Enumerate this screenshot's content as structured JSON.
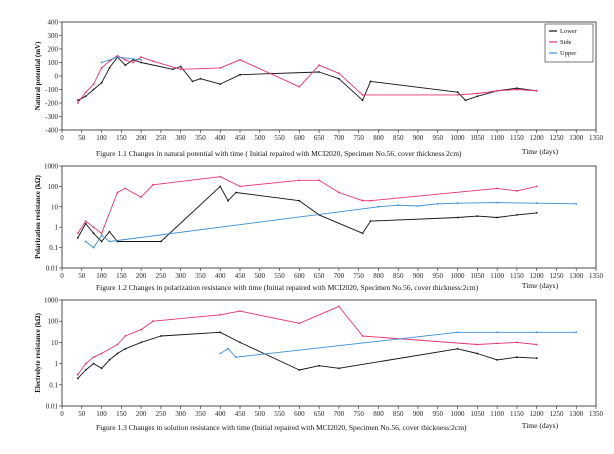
{
  "colors": {
    "lower": "#111111",
    "side": "#e8336b",
    "upper": "#3b8fd8",
    "axis": "#222222"
  },
  "chart_data": [
    {
      "type": "line",
      "title": "Figure 1.1   Changes in natural potential with time ( Initial repaired with MCI2020, Specimen No.56, cover thickness 2cm)",
      "xlabel": "Time (days)",
      "ylabel": "Natural potential (mV)",
      "xlim": [
        0,
        1350
      ],
      "ylim": [
        -400,
        400
      ],
      "xticks": [
        "0",
        "50",
        "100",
        "150",
        "200",
        "250",
        "300",
        "350",
        "400",
        "450",
        "500",
        "550",
        "600",
        "650",
        "700",
        "750",
        "800",
        "850",
        "900",
        "950",
        "1000",
        "1050",
        "1100",
        "1150",
        "1200",
        "1250",
        "1300",
        "1350"
      ],
      "yticks": [
        "400",
        "300",
        "200",
        "100",
        "0",
        "-100",
        "-200",
        "-300",
        "-400"
      ],
      "legend": [
        "Lower",
        "Side",
        "Upper"
      ],
      "legend_position": "top-right",
      "series": [
        {
          "name": "Lower",
          "x": [
            40,
            60,
            80,
            100,
            120,
            140,
            160,
            180,
            200,
            280,
            300,
            330,
            350,
            400,
            450,
            650,
            700,
            760,
            780,
            1000,
            1020,
            1050,
            1100,
            1150,
            1200
          ],
          "y": [
            -180,
            -150,
            -100,
            -50,
            60,
            140,
            80,
            120,
            100,
            50,
            70,
            -40,
            -20,
            -60,
            10,
            30,
            -20,
            -180,
            -40,
            -120,
            -180,
            -150,
            -110,
            -90,
            -110
          ]
        },
        {
          "name": "Side",
          "x": [
            40,
            60,
            80,
            100,
            120,
            140,
            160,
            180,
            200,
            230,
            300,
            400,
            450,
            600,
            650,
            700,
            760,
            1000,
            1050,
            1100,
            1150,
            1200
          ],
          "y": [
            -200,
            -120,
            -60,
            60,
            110,
            150,
            120,
            100,
            140,
            110,
            50,
            60,
            120,
            -80,
            80,
            20,
            -140,
            -140,
            -130,
            -110,
            -100,
            -110
          ]
        },
        {
          "name": "Upper",
          "x": [
            100,
            140,
            200
          ],
          "y": [
            100,
            140,
            120
          ]
        }
      ]
    },
    {
      "type": "line",
      "title": "Figure 1.2   Changes in polarization resistance with time (Initial repaired with MCI2020, Specimen No.56, cover thickness:2cm)",
      "xlabel": "Time (days)",
      "ylabel": "Polarization resistance (kΩ)",
      "xlim": [
        0,
        1350
      ],
      "ylim_log": [
        0.01,
        1000
      ],
      "xticks": [
        "0",
        "50",
        "100",
        "150",
        "200",
        "250",
        "300",
        "350",
        "400",
        "450",
        "500",
        "550",
        "600",
        "650",
        "700",
        "750",
        "800",
        "850",
        "900",
        "950",
        "1000",
        "1050",
        "1100",
        "1150",
        "1200",
        "1250",
        "1300",
        "1350"
      ],
      "yticks": [
        "1000",
        "100",
        "10",
        "1",
        "0.1",
        "0.01"
      ],
      "series": [
        {
          "name": "Lower",
          "x": [
            40,
            60,
            80,
            100,
            120,
            140,
            250,
            400,
            420,
            440,
            600,
            650,
            760,
            780,
            1000,
            1050,
            1100,
            1150,
            1200
          ],
          "y": [
            0.3,
            1.5,
            0.5,
            0.2,
            0.6,
            0.2,
            0.2,
            100,
            20,
            50,
            20,
            4,
            0.5,
            2,
            3,
            3.5,
            3,
            4,
            5
          ]
        },
        {
          "name": "Side",
          "x": [
            40,
            60,
            80,
            100,
            140,
            160,
            200,
            230,
            400,
            450,
            600,
            650,
            700,
            760,
            780,
            1100,
            1150,
            1200
          ],
          "y": [
            0.5,
            2,
            1,
            0.5,
            50,
            80,
            30,
            120,
            300,
            100,
            200,
            200,
            50,
            20,
            20,
            80,
            60,
            100
          ]
        },
        {
          "name": "Upper",
          "x": [
            60,
            80,
            100,
            120,
            800,
            850,
            900,
            950,
            1000,
            1100,
            1200,
            1300
          ],
          "y": [
            0.2,
            0.1,
            0.4,
            0.2,
            10,
            12,
            11,
            14,
            15,
            16,
            15,
            14
          ]
        }
      ]
    },
    {
      "type": "line",
      "title": "Figure 1.3   Changes in solution resistance with time (Initial repaired with MCI2020, Specimen No.56, cover thickness:2cm)",
      "xlabel": "Time (days)",
      "ylabel": "Electrolyte resistance (kΩ)",
      "xlim": [
        0,
        1350
      ],
      "ylim_log": [
        0.01,
        1000
      ],
      "xticks": [
        "0",
        "50",
        "100",
        "150",
        "200",
        "250",
        "300",
        "350",
        "400",
        "450",
        "500",
        "550",
        "600",
        "650",
        "700",
        "750",
        "800",
        "850",
        "900",
        "950",
        "1000",
        "1050",
        "1100",
        "1150",
        "1200",
        "1250",
        "1300",
        "1350"
      ],
      "yticks": [
        "1000",
        "100",
        "10",
        "1",
        "0.1",
        "0.01"
      ],
      "series": [
        {
          "name": "Lower",
          "x": [
            40,
            60,
            80,
            100,
            120,
            140,
            160,
            200,
            250,
            400,
            450,
            600,
            650,
            700,
            1000,
            1050,
            1100,
            1150,
            1200
          ],
          "y": [
            0.2,
            0.5,
            1,
            0.6,
            1.5,
            3,
            5,
            10,
            20,
            30,
            10,
            0.5,
            0.8,
            0.6,
            5,
            3,
            1.5,
            2,
            1.8
          ]
        },
        {
          "name": "Side",
          "x": [
            40,
            60,
            80,
            100,
            140,
            160,
            200,
            230,
            400,
            450,
            600,
            700,
            760,
            1050,
            1100,
            1150,
            1200
          ],
          "y": [
            0.3,
            1,
            2,
            3,
            8,
            20,
            40,
            100,
            200,
            300,
            80,
            500,
            20,
            8,
            9,
            10,
            8
          ]
        },
        {
          "name": "Upper",
          "x": [
            400,
            420,
            440,
            1000,
            1100,
            1200,
            1300
          ],
          "y": [
            3,
            5,
            2,
            30,
            30,
            30,
            30
          ]
        }
      ]
    }
  ]
}
